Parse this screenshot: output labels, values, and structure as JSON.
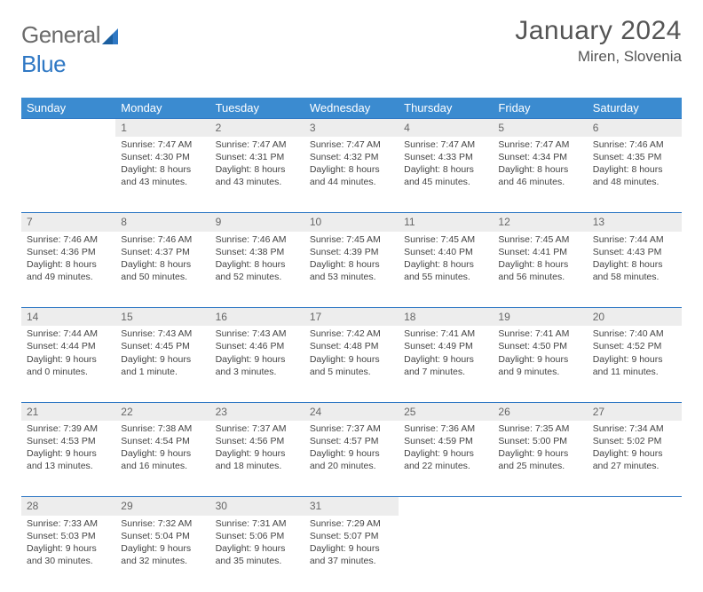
{
  "brand": {
    "part1": "General",
    "part2": "Blue"
  },
  "title": "January 2024",
  "location": "Miren, Slovenia",
  "colors": {
    "header_bg": "#3b8bd0",
    "rule": "#2f78c4",
    "daynum_bg": "#ededed",
    "text": "#444444",
    "title_text": "#555555",
    "logo_gray": "#6b6b6b",
    "logo_blue": "#2f78c4"
  },
  "weekdays": [
    "Sunday",
    "Monday",
    "Tuesday",
    "Wednesday",
    "Thursday",
    "Friday",
    "Saturday"
  ],
  "weeks": [
    {
      "days": [
        {
          "num": "",
          "sunrise": "",
          "sunset": "",
          "daylight": ""
        },
        {
          "num": "1",
          "sunrise": "Sunrise: 7:47 AM",
          "sunset": "Sunset: 4:30 PM",
          "daylight": "Daylight: 8 hours and 43 minutes."
        },
        {
          "num": "2",
          "sunrise": "Sunrise: 7:47 AM",
          "sunset": "Sunset: 4:31 PM",
          "daylight": "Daylight: 8 hours and 43 minutes."
        },
        {
          "num": "3",
          "sunrise": "Sunrise: 7:47 AM",
          "sunset": "Sunset: 4:32 PM",
          "daylight": "Daylight: 8 hours and 44 minutes."
        },
        {
          "num": "4",
          "sunrise": "Sunrise: 7:47 AM",
          "sunset": "Sunset: 4:33 PM",
          "daylight": "Daylight: 8 hours and 45 minutes."
        },
        {
          "num": "5",
          "sunrise": "Sunrise: 7:47 AM",
          "sunset": "Sunset: 4:34 PM",
          "daylight": "Daylight: 8 hours and 46 minutes."
        },
        {
          "num": "6",
          "sunrise": "Sunrise: 7:46 AM",
          "sunset": "Sunset: 4:35 PM",
          "daylight": "Daylight: 8 hours and 48 minutes."
        }
      ]
    },
    {
      "days": [
        {
          "num": "7",
          "sunrise": "Sunrise: 7:46 AM",
          "sunset": "Sunset: 4:36 PM",
          "daylight": "Daylight: 8 hours and 49 minutes."
        },
        {
          "num": "8",
          "sunrise": "Sunrise: 7:46 AM",
          "sunset": "Sunset: 4:37 PM",
          "daylight": "Daylight: 8 hours and 50 minutes."
        },
        {
          "num": "9",
          "sunrise": "Sunrise: 7:46 AM",
          "sunset": "Sunset: 4:38 PM",
          "daylight": "Daylight: 8 hours and 52 minutes."
        },
        {
          "num": "10",
          "sunrise": "Sunrise: 7:45 AM",
          "sunset": "Sunset: 4:39 PM",
          "daylight": "Daylight: 8 hours and 53 minutes."
        },
        {
          "num": "11",
          "sunrise": "Sunrise: 7:45 AM",
          "sunset": "Sunset: 4:40 PM",
          "daylight": "Daylight: 8 hours and 55 minutes."
        },
        {
          "num": "12",
          "sunrise": "Sunrise: 7:45 AM",
          "sunset": "Sunset: 4:41 PM",
          "daylight": "Daylight: 8 hours and 56 minutes."
        },
        {
          "num": "13",
          "sunrise": "Sunrise: 7:44 AM",
          "sunset": "Sunset: 4:43 PM",
          "daylight": "Daylight: 8 hours and 58 minutes."
        }
      ]
    },
    {
      "days": [
        {
          "num": "14",
          "sunrise": "Sunrise: 7:44 AM",
          "sunset": "Sunset: 4:44 PM",
          "daylight": "Daylight: 9 hours and 0 minutes."
        },
        {
          "num": "15",
          "sunrise": "Sunrise: 7:43 AM",
          "sunset": "Sunset: 4:45 PM",
          "daylight": "Daylight: 9 hours and 1 minute."
        },
        {
          "num": "16",
          "sunrise": "Sunrise: 7:43 AM",
          "sunset": "Sunset: 4:46 PM",
          "daylight": "Daylight: 9 hours and 3 minutes."
        },
        {
          "num": "17",
          "sunrise": "Sunrise: 7:42 AM",
          "sunset": "Sunset: 4:48 PM",
          "daylight": "Daylight: 9 hours and 5 minutes."
        },
        {
          "num": "18",
          "sunrise": "Sunrise: 7:41 AM",
          "sunset": "Sunset: 4:49 PM",
          "daylight": "Daylight: 9 hours and 7 minutes."
        },
        {
          "num": "19",
          "sunrise": "Sunrise: 7:41 AM",
          "sunset": "Sunset: 4:50 PM",
          "daylight": "Daylight: 9 hours and 9 minutes."
        },
        {
          "num": "20",
          "sunrise": "Sunrise: 7:40 AM",
          "sunset": "Sunset: 4:52 PM",
          "daylight": "Daylight: 9 hours and 11 minutes."
        }
      ]
    },
    {
      "days": [
        {
          "num": "21",
          "sunrise": "Sunrise: 7:39 AM",
          "sunset": "Sunset: 4:53 PM",
          "daylight": "Daylight: 9 hours and 13 minutes."
        },
        {
          "num": "22",
          "sunrise": "Sunrise: 7:38 AM",
          "sunset": "Sunset: 4:54 PM",
          "daylight": "Daylight: 9 hours and 16 minutes."
        },
        {
          "num": "23",
          "sunrise": "Sunrise: 7:37 AM",
          "sunset": "Sunset: 4:56 PM",
          "daylight": "Daylight: 9 hours and 18 minutes."
        },
        {
          "num": "24",
          "sunrise": "Sunrise: 7:37 AM",
          "sunset": "Sunset: 4:57 PM",
          "daylight": "Daylight: 9 hours and 20 minutes."
        },
        {
          "num": "25",
          "sunrise": "Sunrise: 7:36 AM",
          "sunset": "Sunset: 4:59 PM",
          "daylight": "Daylight: 9 hours and 22 minutes."
        },
        {
          "num": "26",
          "sunrise": "Sunrise: 7:35 AM",
          "sunset": "Sunset: 5:00 PM",
          "daylight": "Daylight: 9 hours and 25 minutes."
        },
        {
          "num": "27",
          "sunrise": "Sunrise: 7:34 AM",
          "sunset": "Sunset: 5:02 PM",
          "daylight": "Daylight: 9 hours and 27 minutes."
        }
      ]
    },
    {
      "days": [
        {
          "num": "28",
          "sunrise": "Sunrise: 7:33 AM",
          "sunset": "Sunset: 5:03 PM",
          "daylight": "Daylight: 9 hours and 30 minutes."
        },
        {
          "num": "29",
          "sunrise": "Sunrise: 7:32 AM",
          "sunset": "Sunset: 5:04 PM",
          "daylight": "Daylight: 9 hours and 32 minutes."
        },
        {
          "num": "30",
          "sunrise": "Sunrise: 7:31 AM",
          "sunset": "Sunset: 5:06 PM",
          "daylight": "Daylight: 9 hours and 35 minutes."
        },
        {
          "num": "31",
          "sunrise": "Sunrise: 7:29 AM",
          "sunset": "Sunset: 5:07 PM",
          "daylight": "Daylight: 9 hours and 37 minutes."
        },
        {
          "num": "",
          "sunrise": "",
          "sunset": "",
          "daylight": ""
        },
        {
          "num": "",
          "sunrise": "",
          "sunset": "",
          "daylight": ""
        },
        {
          "num": "",
          "sunrise": "",
          "sunset": "",
          "daylight": ""
        }
      ]
    }
  ]
}
